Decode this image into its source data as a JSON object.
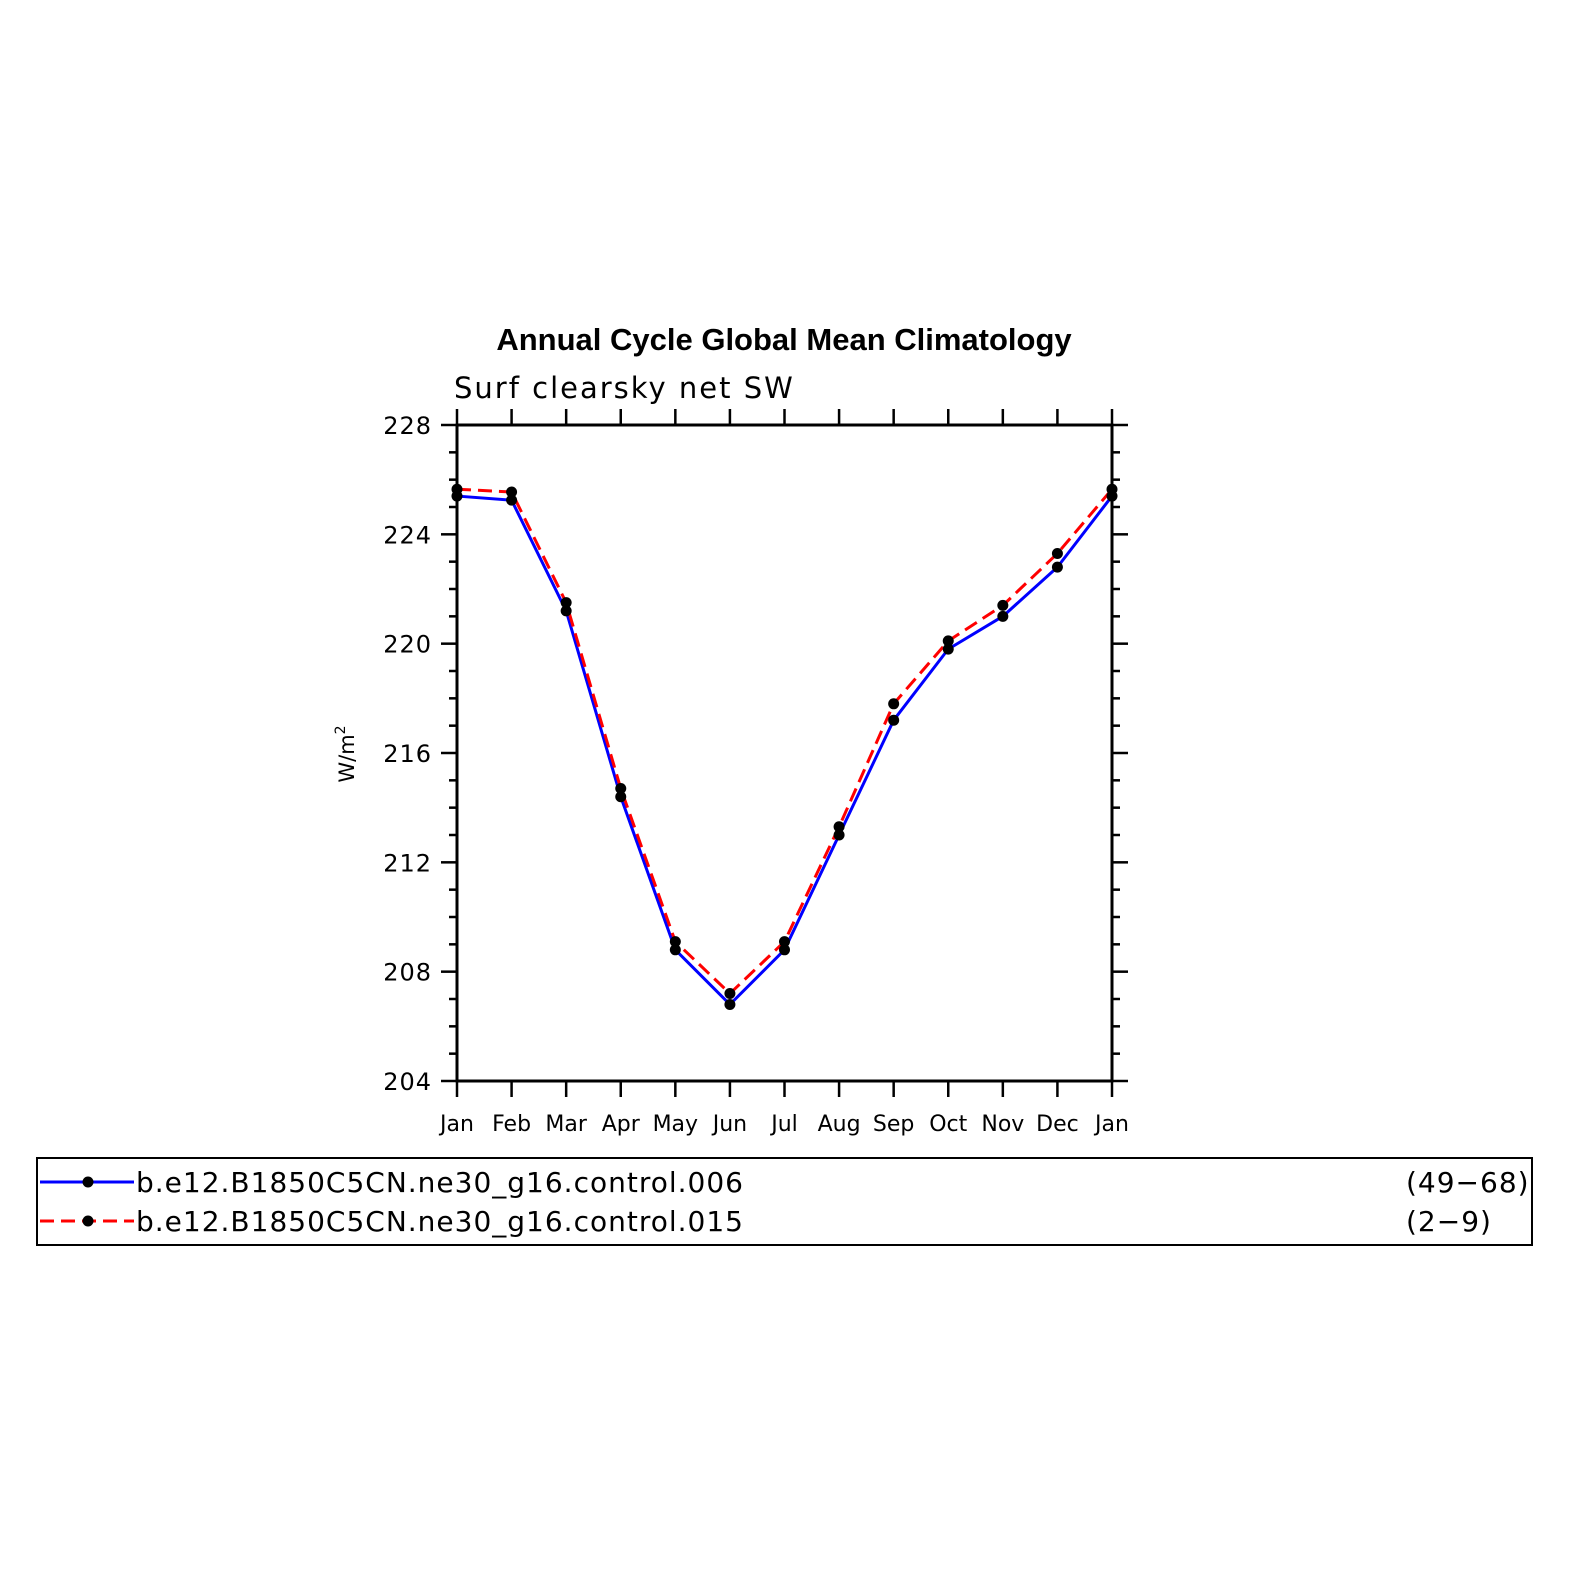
{
  "chart_data": {
    "type": "line",
    "title": "Annual Cycle Global Mean Climatology",
    "subtitle": "Surf clearsky net SW",
    "ylabel": "W/m",
    "ylabel_sup": "2",
    "xlabel": "",
    "ylim": [
      204,
      228
    ],
    "yticks": [
      "204",
      "208",
      "212",
      "216",
      "220",
      "224",
      "228"
    ],
    "y_minor_step": 1,
    "categories": [
      "Jan",
      "Feb",
      "Mar",
      "Apr",
      "May",
      "Jun",
      "Jul",
      "Aug",
      "Sep",
      "Oct",
      "Nov",
      "Dec",
      "Jan"
    ],
    "grid": false,
    "legend_position": "bottom",
    "series": [
      {
        "name": "b.e12.B1850C5CN.ne30_g16.control.006",
        "years": "(49−68)",
        "color": "#0000ff",
        "style": "solid",
        "marker": "filled-circle",
        "values": [
          225.4,
          225.25,
          221.2,
          214.4,
          208.8,
          206.8,
          208.8,
          213.0,
          217.2,
          219.8,
          221.0,
          222.8,
          225.4
        ]
      },
      {
        "name": "b.e12.B1850C5CN.ne30_g16.control.015",
        "years": "(2−9)",
        "color": "#ff0000",
        "style": "dashed",
        "marker": "filled-circle",
        "values": [
          225.65,
          225.55,
          221.5,
          214.7,
          209.1,
          207.2,
          209.1,
          213.3,
          217.8,
          220.1,
          221.4,
          223.3,
          225.65
        ]
      }
    ]
  }
}
